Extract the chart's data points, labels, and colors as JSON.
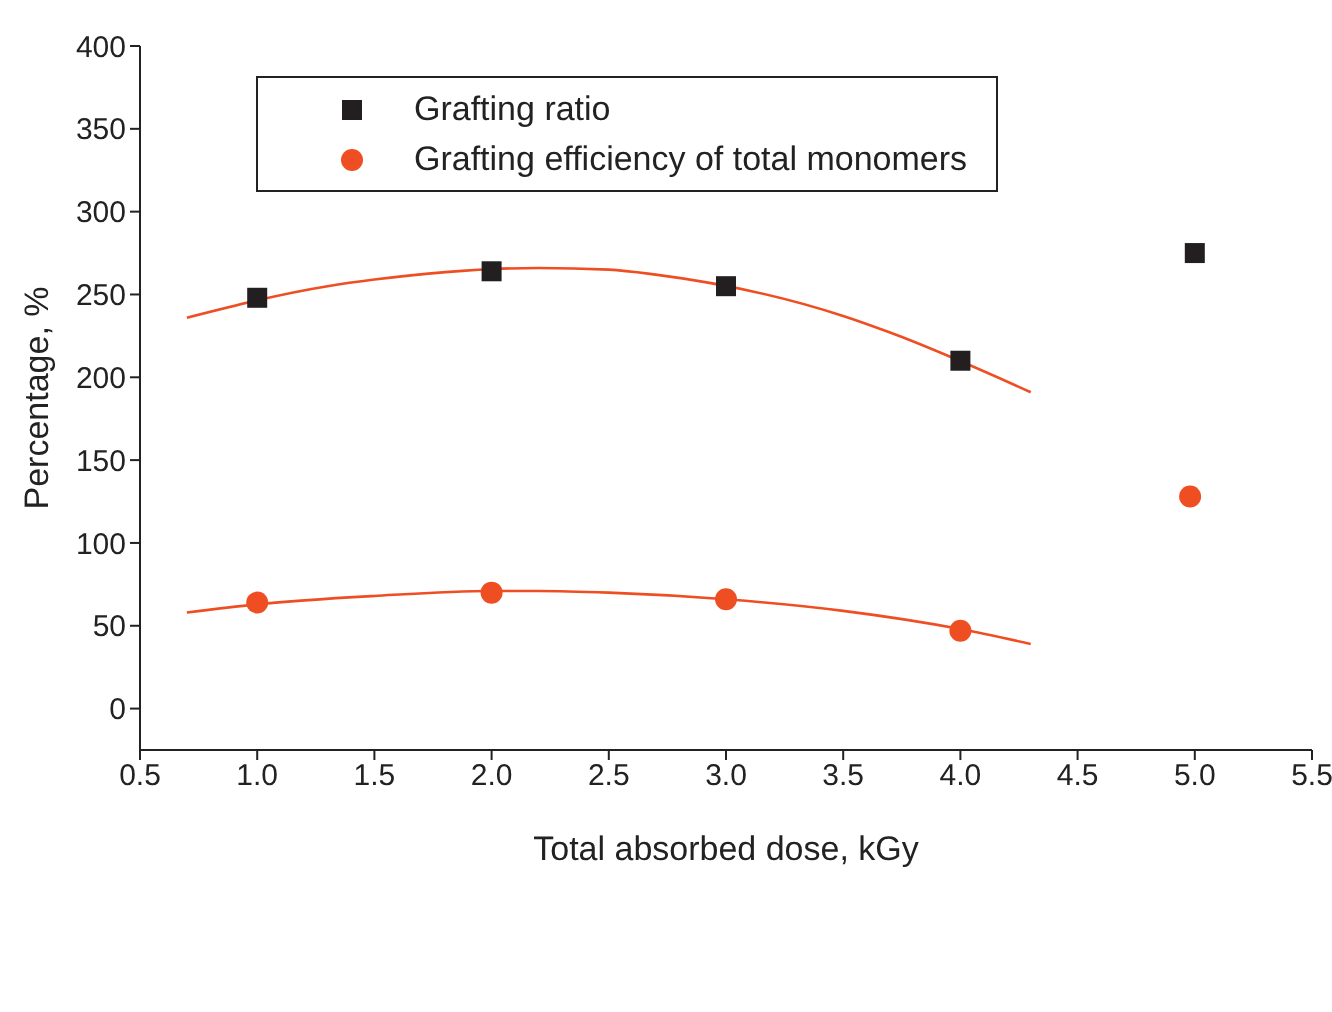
{
  "chart_data": {
    "type": "scatter",
    "xlabel": "Total absorbed dose, kGy",
    "ylabel": "Percentage, %",
    "xlim": [
      0.5,
      5.5
    ],
    "xticks": [
      {
        "value": 0.5,
        "label": "0.5"
      },
      {
        "value": 1,
        "label": "1.0"
      },
      {
        "value": 1.5,
        "label": "1.5"
      },
      {
        "value": 2,
        "label": "2.0"
      },
      {
        "value": 2.5,
        "label": "2.5"
      },
      {
        "value": 3,
        "label": "3.0"
      },
      {
        "value": 3.5,
        "label": "3.5"
      },
      {
        "value": 4,
        "label": "4.0"
      },
      {
        "value": 4.5,
        "label": "4.5"
      },
      {
        "value": 5,
        "label": "5.0"
      },
      {
        "value": 5.5,
        "label": "5.5"
      }
    ],
    "ylim": [
      -25,
      400
    ],
    "yticks": [
      0,
      50,
      100,
      150,
      200,
      250,
      300,
      350,
      400
    ],
    "x": [
      1,
      2,
      3,
      4,
      5
    ],
    "series": [
      {
        "name": "Grafting ratio",
        "color": "#231f20",
        "marker": "square",
        "values": [
          248,
          264,
          255,
          210,
          275
        ]
      },
      {
        "name": "Grafting efficiency of total monomers",
        "color": "#ef4e23",
        "marker": "circle",
        "x": [
          1,
          2,
          3,
          4,
          4.98
        ],
        "values": [
          64,
          70,
          66,
          47,
          128
        ]
      },
      {
        "type": "line",
        "color": "#ef4e23",
        "marker": "none",
        "x": [
          0.7,
          1.3,
          1.5,
          2.2,
          2.5,
          2.7,
          3.5,
          3.7,
          4.3
        ],
        "values": [
          236,
          255,
          259,
          266,
          265,
          262,
          237,
          227,
          191
        ]
      },
      {
        "type": "line",
        "color": "#ef4e23",
        "marker": "none",
        "x": [
          0.7,
          1,
          1.5,
          2,
          2.2,
          2.5,
          3,
          3.5,
          4,
          4.3
        ],
        "values": [
          58,
          63,
          68,
          71,
          71,
          70,
          66,
          59,
          48,
          39
        ]
      }
    ],
    "legend": "top left"
  }
}
